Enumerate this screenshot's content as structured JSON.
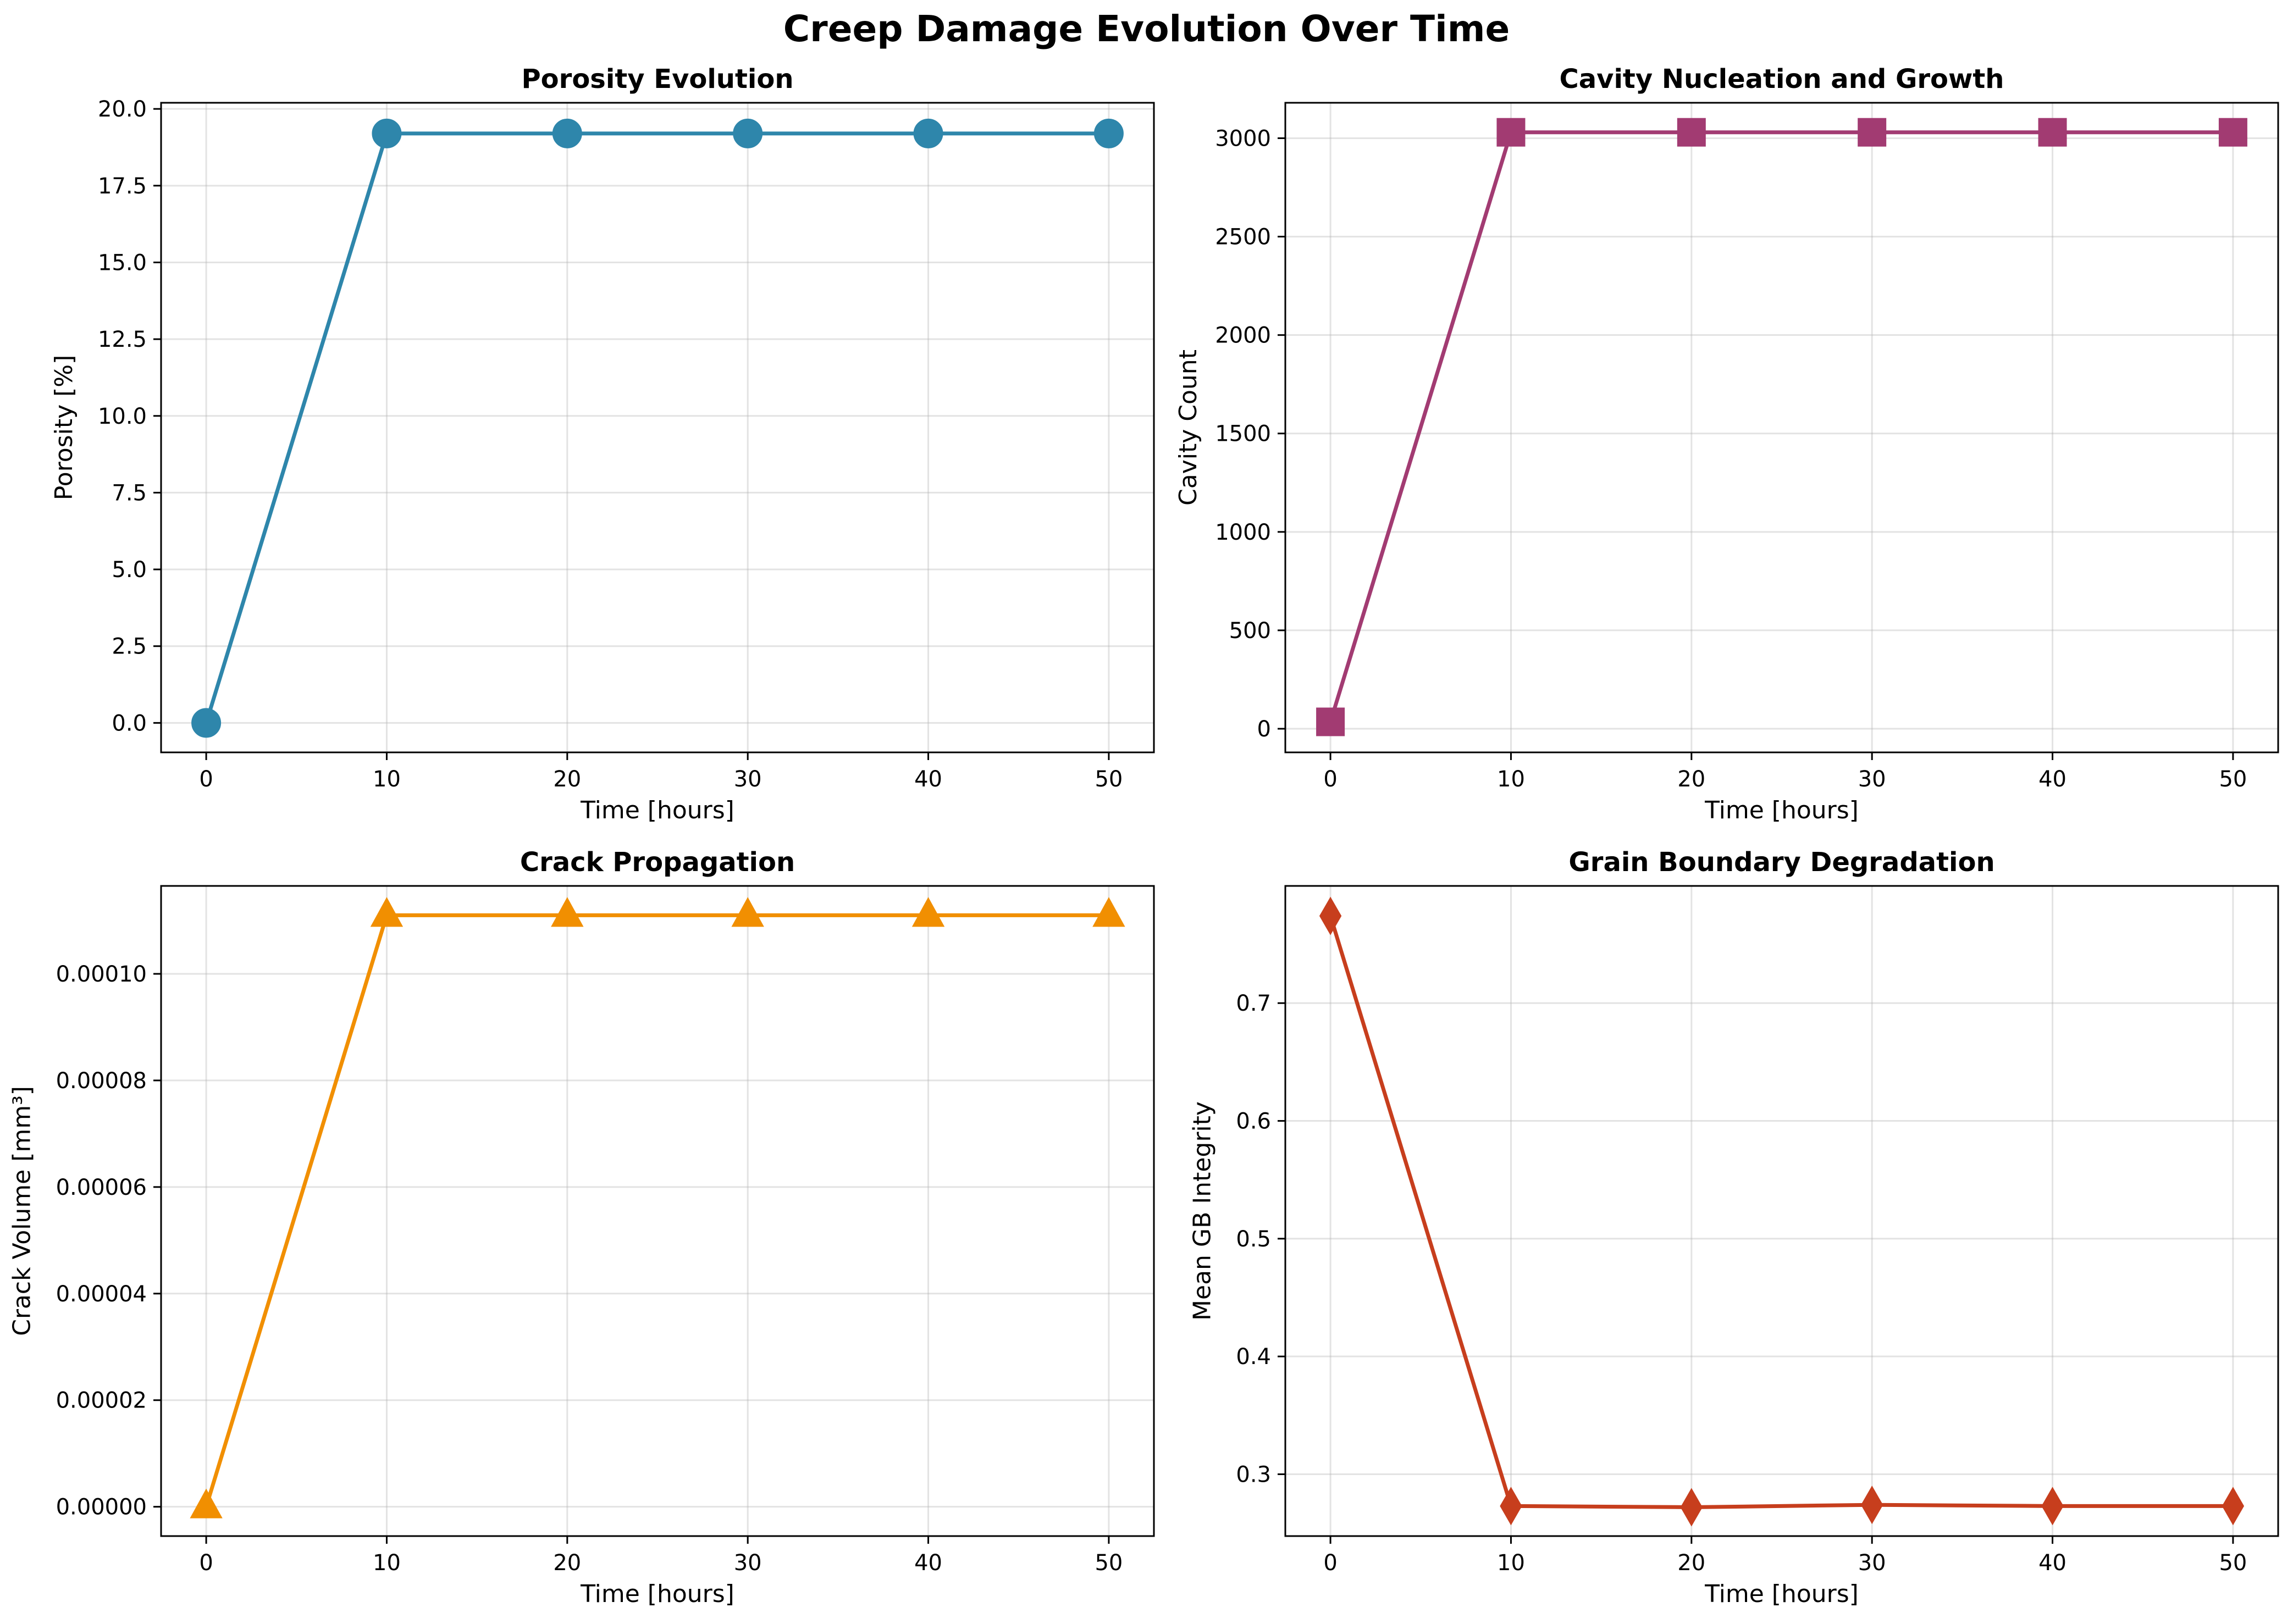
{
  "title": "Creep Damage Evolution Over Time",
  "chart_data": [
    {
      "type": "line",
      "title": "Porosity Evolution",
      "xlabel": "Time [hours]",
      "ylabel": "Porosity [%]",
      "x": [
        0,
        10,
        20,
        30,
        40,
        50
      ],
      "xticks": [
        "0",
        "10",
        "20",
        "30",
        "40",
        "50"
      ],
      "xlim": [
        -2.5,
        52.5
      ],
      "ylim": [
        -0.96,
        20.2
      ],
      "yticks": [
        "0.0",
        "2.5",
        "5.0",
        "7.5",
        "10.0",
        "12.5",
        "15.0",
        "17.5",
        "20.0"
      ],
      "yticks_values": [
        0,
        2.5,
        5,
        7.5,
        10,
        12.5,
        15,
        17.5,
        20
      ],
      "grid": true,
      "series": [
        {
          "values": [
            0,
            19.2,
            19.2,
            19.2,
            19.2,
            19.2
          ],
          "color": "#2e86ab",
          "marker": "circle"
        }
      ]
    },
    {
      "type": "line",
      "title": "Cavity Nucleation and Growth",
      "xlabel": "Time [hours]",
      "ylabel": "Cavity Count",
      "x": [
        0,
        10,
        20,
        30,
        40,
        50
      ],
      "xticks": [
        "0",
        "10",
        "20",
        "30",
        "40",
        "50"
      ],
      "xlim": [
        -2.5,
        52.5
      ],
      "ylim": [
        -120,
        3180
      ],
      "yticks": [
        "0",
        "500",
        "1000",
        "1500",
        "2000",
        "2500",
        "3000"
      ],
      "yticks_values": [
        0,
        500,
        1000,
        1500,
        2000,
        2500,
        3000
      ],
      "grid": true,
      "series": [
        {
          "values": [
            35,
            3030,
            3030,
            3030,
            3030,
            3030
          ],
          "color": "#a23b72",
          "marker": "square"
        }
      ]
    },
    {
      "type": "line",
      "title": "Crack Propagation",
      "xlabel": "Time [hours]",
      "ylabel": "Crack Volume [mm³]",
      "x": [
        0,
        10,
        20,
        30,
        40,
        50
      ],
      "xticks": [
        "0",
        "10",
        "20",
        "30",
        "40",
        "50"
      ],
      "xlim": [
        -2.5,
        52.5
      ],
      "ylim": [
        -5.5e-06,
        0.0001165
      ],
      "yticks": [
        "0.00000",
        "0.00002",
        "0.00004",
        "0.00006",
        "0.00008",
        "0.00010"
      ],
      "yticks_values": [
        0,
        2e-05,
        4e-05,
        6e-05,
        8e-05,
        0.0001
      ],
      "grid": true,
      "series": [
        {
          "values": [
            0,
            0.000111,
            0.000111,
            0.000111,
            0.000111,
            0.000111
          ],
          "color": "#f18f01",
          "marker": "triangle"
        }
      ]
    },
    {
      "type": "line",
      "title": "Grain Boundary Degradation",
      "xlabel": "Time [hours]",
      "ylabel": "Mean GB Integrity",
      "x": [
        0,
        10,
        20,
        30,
        40,
        50
      ],
      "xticks": [
        "0",
        "10",
        "20",
        "30",
        "40",
        "50"
      ],
      "xlim": [
        -2.5,
        52.5
      ],
      "ylim": [
        0.2475,
        0.7995
      ],
      "yticks": [
        "0.3",
        "0.4",
        "0.5",
        "0.6",
        "0.7"
      ],
      "yticks_values": [
        0.3,
        0.4,
        0.5,
        0.6,
        0.7
      ],
      "grid": true,
      "series": [
        {
          "values": [
            0.774,
            0.273,
            0.272,
            0.274,
            0.273,
            0.273
          ],
          "color": "#c73e1d",
          "marker": "diamond"
        }
      ]
    }
  ]
}
